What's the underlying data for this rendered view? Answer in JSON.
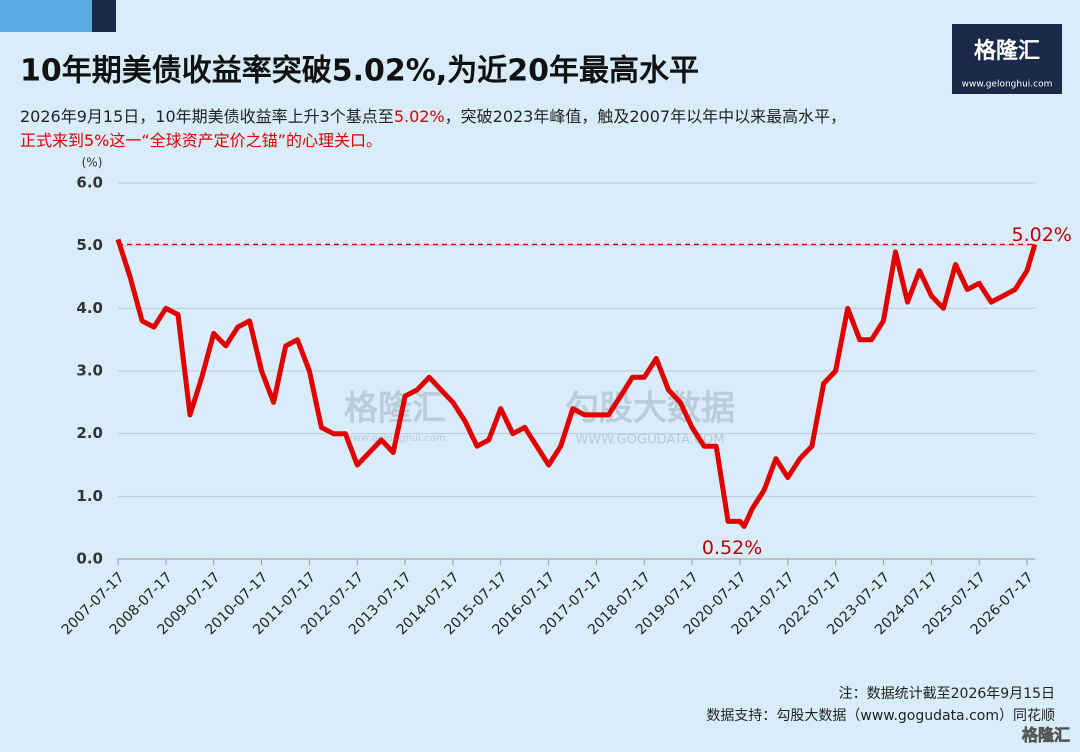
{
  "chart_data": {
    "type": "line",
    "title": "10年期美债收益率突破5.02%,为近20年最高水平",
    "subtitle_lines": [
      [
        {
          "text": "2026年9月15日，10年期美债收益率上升3个基点至",
          "color": "#222222"
        },
        {
          "text": "5.02%",
          "color": "#e00000"
        },
        {
          "text": "，突破2023年峰值，触及2007年以年中以来最高水平，",
          "color": "#222222"
        }
      ],
      [
        {
          "text": "正式来到5%这一“全球资产定价之锚”的心理关口。",
          "color": "#e00000"
        }
      ]
    ],
    "y_unit": "(%)",
    "color": "#e00000",
    "x": [
      "2007-07-17",
      "2007-10-17",
      "2008-01-17",
      "2008-04-17",
      "2008-07-17",
      "2008-10-17",
      "2009-01-17",
      "2009-04-17",
      "2009-07-17",
      "2009-10-17",
      "2010-01-17",
      "2010-04-17",
      "2010-07-17",
      "2010-10-17",
      "2011-01-17",
      "2011-04-17",
      "2011-07-17",
      "2011-10-17",
      "2012-01-17",
      "2012-04-17",
      "2012-07-17",
      "2012-10-17",
      "2013-01-17",
      "2013-04-17",
      "2013-07-17",
      "2013-10-17",
      "2014-01-17",
      "2014-04-17",
      "2014-07-17",
      "2014-10-17",
      "2015-01-17",
      "2015-04-17",
      "2015-07-17",
      "2015-10-17",
      "2016-01-17",
      "2016-04-17",
      "2016-07-17",
      "2016-10-17",
      "2017-01-17",
      "2017-04-17",
      "2017-07-17",
      "2017-10-17",
      "2018-01-17",
      "2018-04-17",
      "2018-07-17",
      "2018-10-17",
      "2019-01-17",
      "2019-04-17",
      "2019-07-17",
      "2019-10-17",
      "2020-01-17",
      "2020-04-17",
      "2020-07-17",
      "2020-08-17",
      "2020-10-17",
      "2021-01-17",
      "2021-04-17",
      "2021-07-17",
      "2021-10-17",
      "2022-01-17",
      "2022-04-17",
      "2022-07-17",
      "2022-10-17",
      "2023-01-17",
      "2023-04-17",
      "2023-07-17",
      "2023-10-17",
      "2024-01-17",
      "2024-04-17",
      "2024-07-17",
      "2024-10-17",
      "2025-01-17",
      "2025-04-17",
      "2025-07-17",
      "2025-10-17",
      "2026-01-17",
      "2026-04-17",
      "2026-07-17",
      "2026-09-15"
    ],
    "values": [
      5.1,
      4.5,
      3.8,
      3.7,
      4.0,
      3.9,
      2.3,
      2.9,
      3.6,
      3.4,
      3.7,
      3.8,
      3.0,
      2.5,
      3.4,
      3.5,
      3.0,
      2.1,
      2.0,
      2.0,
      1.5,
      1.7,
      1.9,
      1.7,
      2.6,
      2.7,
      2.9,
      2.7,
      2.5,
      2.2,
      1.8,
      1.9,
      2.4,
      2.0,
      2.1,
      1.8,
      1.5,
      1.8,
      2.4,
      2.3,
      2.3,
      2.3,
      2.6,
      2.9,
      2.9,
      3.2,
      2.7,
      2.5,
      2.1,
      1.8,
      1.8,
      0.6,
      0.6,
      0.52,
      0.8,
      1.1,
      1.6,
      1.3,
      1.6,
      1.8,
      2.8,
      3.0,
      4.0,
      3.5,
      3.5,
      3.8,
      4.9,
      4.1,
      4.6,
      4.2,
      4.0,
      4.7,
      4.3,
      4.4,
      4.1,
      4.2,
      4.3,
      4.6,
      5.02
    ],
    "xlim": [
      "2007-07-17",
      "2026-07-17"
    ],
    "xticks": [
      "2007-07-17",
      "2008-07-17",
      "2009-07-17",
      "2010-07-17",
      "2011-07-17",
      "2012-07-17",
      "2013-07-17",
      "2014-07-17",
      "2015-07-17",
      "2016-07-17",
      "2017-07-17",
      "2018-07-17",
      "2019-07-17",
      "2020-07-17",
      "2021-07-17",
      "2022-07-17",
      "2023-07-17",
      "2024-07-17",
      "2025-07-17",
      "2026-07-17"
    ],
    "ylim": [
      0,
      6
    ],
    "yticks": [
      {
        "value": 0,
        "label": "0.0"
      },
      {
        "value": 1,
        "label": "1.0"
      },
      {
        "value": 2,
        "label": "2.0"
      },
      {
        "value": 3,
        "label": "3.0"
      },
      {
        "value": 4,
        "label": "4.0"
      },
      {
        "value": 5,
        "label": "5.0"
      },
      {
        "value": 6,
        "label": "6.0"
      }
    ],
    "grid": true,
    "annotations": [
      {
        "text": "5.02%",
        "x": "2026-09-15",
        "y": 5.02,
        "reference_line": true
      },
      {
        "text": "0.52%",
        "x": "2020-08-17",
        "y": 0.52,
        "reference_line": false
      }
    ],
    "notes": [
      "注：数据统计截至2026年9月15日",
      "数据支持：勾股大数据（www.gogudata.com）同花顺"
    ],
    "logo": {
      "name": "格隆汇",
      "url": "www.gelonghui.com"
    },
    "watermark": {
      "left": "格隆汇",
      "left_url": "www.gelonghui.com",
      "right": "勾股大数据",
      "right_url": "WWW.GOGUDATA.COM"
    },
    "footer_logo": "格隆汇"
  }
}
